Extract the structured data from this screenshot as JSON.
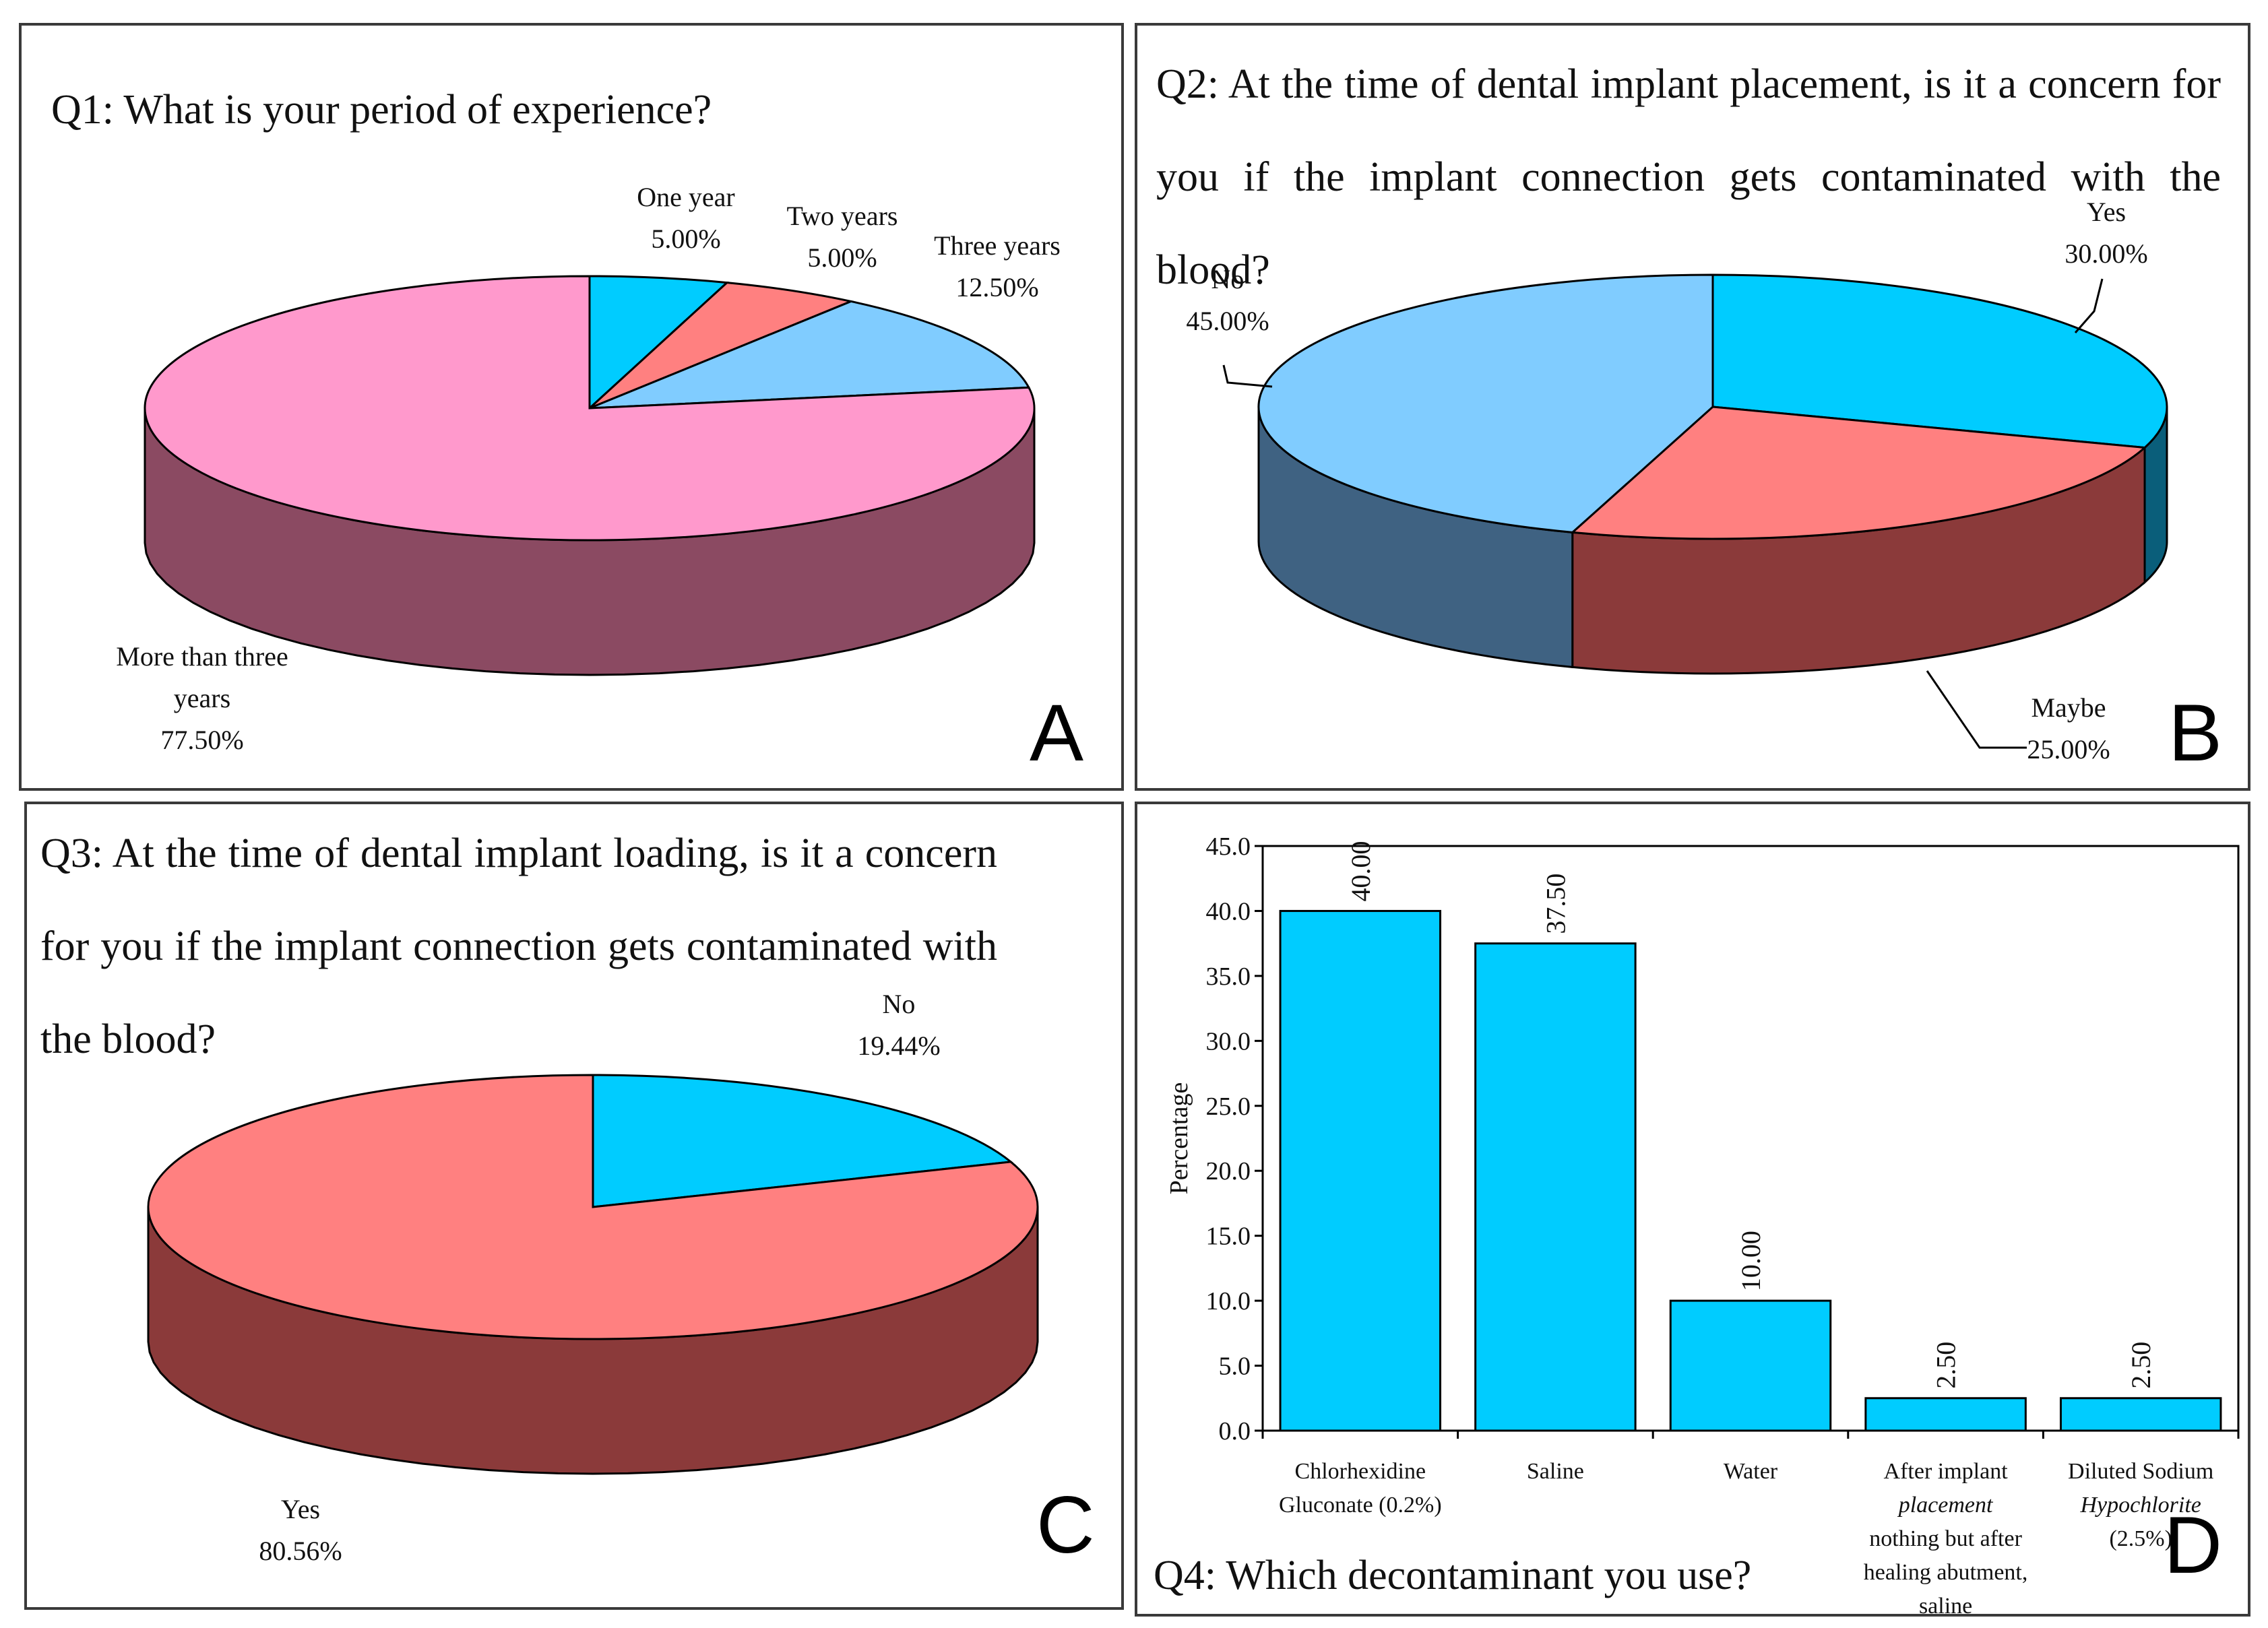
{
  "chart_data": [
    {
      "id": "A",
      "type": "pie",
      "title": "Q1: What is your period of experience?",
      "panel_letter": "A",
      "slices": [
        {
          "label": "One year",
          "value": 5.0,
          "value_label": "5.00%",
          "color": "#00ccff",
          "side_color": "#0a6e8a"
        },
        {
          "label": "Two years",
          "value": 5.0,
          "value_label": "5.00%",
          "color": "#ff8080",
          "side_color": "#8b3a3a"
        },
        {
          "label": "Three years",
          "value": 12.5,
          "value_label": "12.50%",
          "color": "#80ccff",
          "side_color": "#3f6282"
        },
        {
          "label": "More than three years",
          "label_lines": [
            "More than three",
            "years"
          ],
          "value": 77.5,
          "value_label": "77.50%",
          "color": "#ff99cc",
          "side_color": "#8b4a62"
        }
      ]
    },
    {
      "id": "B",
      "type": "pie",
      "title": "Q2: At the time of dental implant placement, is it a concern for you if the implant connection gets contaminated with the blood?",
      "panel_letter": "B",
      "slices": [
        {
          "label": "Yes",
          "value": 30.0,
          "value_label": "30.00%",
          "color": "#00ccff",
          "side_color": "#0a5e7a"
        },
        {
          "label": "Maybe",
          "value": 25.0,
          "value_label": "25.00%",
          "color": "#ff8080",
          "side_color": "#8b3a3a"
        },
        {
          "label": "No",
          "value": 45.0,
          "value_label": "45.00%",
          "color": "#80ccff",
          "side_color": "#3f6282"
        }
      ]
    },
    {
      "id": "C",
      "type": "pie",
      "title": "Q3: At the time of dental implant loading, is it a concern for you if the implant connection gets contaminated with the blood?",
      "panel_letter": "C",
      "slices": [
        {
          "label": "No",
          "value": 19.44,
          "value_label": "19.44%",
          "color": "#00ccff",
          "side_color": "#0a5e7a"
        },
        {
          "label": "Yes",
          "value": 80.56,
          "value_label": "80.56%",
          "color": "#ff8080",
          "side_color": "#8b3a3a"
        }
      ]
    },
    {
      "id": "D",
      "type": "bar",
      "title": "Q4: Which decontaminant you use?",
      "panel_letter": "D",
      "ylabel": "Percentage",
      "ylim": [
        0,
        45
      ],
      "yticks": [
        "0.0",
        "5.0",
        "10.0",
        "15.0",
        "20.0",
        "25.0",
        "30.0",
        "35.0",
        "40.0",
        "45.0"
      ],
      "bar_color": "#00ccff",
      "categories": [
        {
          "label": "Chlorhexidine Gluconate (0.2%)",
          "lines": [
            "Chlorhexidine",
            "Gluconate (0.2%)"
          ]
        },
        {
          "label": "Saline",
          "lines": [
            "Saline"
          ]
        },
        {
          "label": "Water",
          "lines": [
            "Water"
          ]
        },
        {
          "label": "After implant placement nothing but after healing abutment, saline",
          "lines": [
            "After implant",
            "placement",
            "nothing but after",
            "healing abutment,",
            "saline"
          ]
        },
        {
          "label": "Diluted Sodium Hypochlorite (2.5%)",
          "lines": [
            "Diluted  Sodium",
            "Hypochlorite",
            "(2.5%)"
          ]
        }
      ],
      "values": [
        40.0,
        37.5,
        10.0,
        2.5,
        2.5
      ],
      "value_labels": [
        "40.00",
        "37.50",
        "10.00",
        "2.50",
        "2.50"
      ]
    }
  ]
}
